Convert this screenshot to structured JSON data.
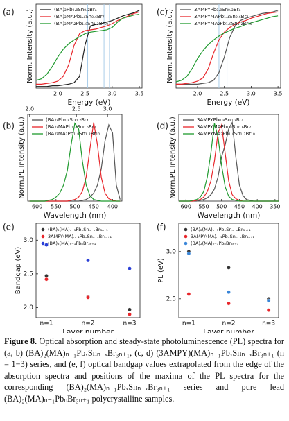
{
  "chart_data": [
    {
      "type": "line",
      "panel_label": "(a)",
      "xlabel": "Energy (eV)",
      "ylabel": "Norm. Intensity (a.u.)",
      "x": [
        1.6,
        1.7,
        1.8,
        1.9,
        2.0,
        2.1,
        2.2,
        2.3,
        2.4,
        2.5,
        2.6,
        2.7,
        2.8,
        2.9,
        3.0,
        3.1,
        3.2,
        3.3,
        3.4,
        3.5
      ],
      "xlim": [
        1.6,
        3.55
      ],
      "xticks": [
        {
          "value": 2,
          "label": "2.0"
        },
        2.5,
        {
          "value": 3,
          "label": "3.0"
        },
        3.5
      ],
      "ylim": [
        0,
        1.08
      ],
      "legend": "upper left",
      "vlines": [
        2.55,
        2.85,
        2.95
      ],
      "vline_color": "#a9cde9",
      "series": [
        {
          "name": "(BA)₂Pb₀.₈Sn₀.₂Br₄",
          "color": "#222222",
          "values": [
            0.02,
            0.02,
            0.02,
            0.03,
            0.03,
            0.04,
            0.05,
            0.07,
            0.15,
            0.55,
            0.8,
            0.82,
            0.83,
            0.85,
            0.87,
            0.9,
            0.93,
            0.95,
            0.97,
            1.0
          ]
        },
        {
          "name": "(BA)₂MAPb₁.₄Sn₀.₆Br₇",
          "color": "#e8262b",
          "values": [
            0.05,
            0.05,
            0.06,
            0.07,
            0.09,
            0.15,
            0.3,
            0.55,
            0.7,
            0.74,
            0.75,
            0.76,
            0.78,
            0.8,
            0.83,
            0.87,
            0.9,
            0.93,
            0.96,
            0.98
          ]
        },
        {
          "name": "(BA)₂MA₂Pb₁.₈Sn₁.₂Br₁₀",
          "color": "#1f9a2e",
          "values": [
            0.1,
            0.12,
            0.18,
            0.28,
            0.4,
            0.5,
            0.57,
            0.62,
            0.66,
            0.7,
            0.72,
            0.73,
            0.74,
            0.75,
            0.78,
            0.85,
            0.9,
            0.92,
            0.94,
            0.95
          ]
        }
      ]
    },
    {
      "type": "line",
      "panel_label": "(c)",
      "xlabel": "Energy (eV)",
      "ylabel": "Norm. Intensity (a.u.)",
      "x": [
        1.6,
        1.7,
        1.8,
        1.9,
        2.0,
        2.1,
        2.2,
        2.3,
        2.4,
        2.5,
        2.6,
        2.7,
        2.8,
        2.9,
        3.0,
        3.1,
        3.2,
        3.3,
        3.4,
        3.5
      ],
      "xlim": [
        1.6,
        3.55
      ],
      "xticks": [
        {
          "value": 2,
          "label": "2.0"
        },
        2.5,
        {
          "value": 3,
          "label": "3.0"
        },
        3.5
      ],
      "ylim": [
        0,
        1.08
      ],
      "legend": "upper left",
      "vlines": [
        2.4,
        2.55
      ],
      "vline_color": "#a9cde9",
      "series": [
        {
          "name": "3AMPYPb₀.₈Sn₀.₂Br₄",
          "color": "#555555",
          "values": [
            0.05,
            0.05,
            0.05,
            0.05,
            0.05,
            0.06,
            0.07,
            0.1,
            0.2,
            0.4,
            0.65,
            0.8,
            0.87,
            0.9,
            0.92,
            0.94,
            0.96,
            0.97,
            0.98,
            1.0
          ]
        },
        {
          "name": "3AMPYMAPb₁.₄Sn₀.₆Br₇",
          "color": "#e8262b",
          "values": [
            0.05,
            0.05,
            0.06,
            0.07,
            0.09,
            0.13,
            0.25,
            0.45,
            0.62,
            0.72,
            0.78,
            0.82,
            0.85,
            0.87,
            0.9,
            0.92,
            0.94,
            0.96,
            0.97,
            0.98
          ]
        },
        {
          "name": "3AMPYMA₂Pb₁.₈Sn₁.₂Br₁₀",
          "color": "#1f9a2e",
          "values": [
            0.08,
            0.1,
            0.15,
            0.25,
            0.38,
            0.48,
            0.56,
            0.62,
            0.67,
            0.71,
            0.74,
            0.77,
            0.79,
            0.82,
            0.84,
            0.86,
            0.88,
            0.9,
            0.92,
            0.93
          ]
        }
      ]
    },
    {
      "type": "line",
      "panel_label": "(b)",
      "xlabel": "Wavelength (nm)",
      "ylabel": "Norm.PL Intensity (a.u.)",
      "x": [
        620,
        610,
        600,
        590,
        580,
        570,
        560,
        550,
        540,
        530,
        520,
        510,
        500,
        490,
        480,
        470,
        460,
        450,
        440,
        430,
        420,
        410,
        400,
        390,
        380
      ],
      "xlim": [
        625,
        375
      ],
      "xticks": [
        600,
        550,
        500,
        450,
        400
      ],
      "ylim": [
        0,
        1.08
      ],
      "x2ticks": [
        {
          "value": 2,
          "label": "2.0"
        },
        2.5,
        {
          "value": 3,
          "label": "3.0"
        }
      ],
      "legend": "upper left",
      "series": [
        {
          "name": "(BA)₂Pb₀.₈Sn₀.₂Br₄",
          "color": "#555555",
          "values": [
            0,
            0,
            0,
            0,
            0,
            0,
            0,
            0,
            0,
            0,
            0,
            0,
            0,
            0,
            0.01,
            0.02,
            0.05,
            0.1,
            0.2,
            0.4,
            0.75,
            0.95,
            0.85,
            0.2,
            0.02
          ]
        },
        {
          "name": "(BA)₂MAPb₁.₄Sn₀.₆Br₇",
          "color": "#e8262b",
          "values": [
            0,
            0,
            0,
            0,
            0,
            0,
            0,
            0,
            0,
            0,
            0,
            0.01,
            0.02,
            0.05,
            0.12,
            0.3,
            0.65,
            0.98,
            0.7,
            0.3,
            0.1,
            0.03,
            0.01,
            0,
            0
          ]
        },
        {
          "name": "(BA)₂MA₂Pb₁.₈Sn₁.₂Br₁₀",
          "color": "#1f9a2e",
          "values": [
            0,
            0,
            0,
            0,
            0,
            0.01,
            0.02,
            0.05,
            0.1,
            0.2,
            0.38,
            0.7,
            0.97,
            0.9,
            0.5,
            0.2,
            0.07,
            0.02,
            0.01,
            0,
            0,
            0,
            0,
            0,
            0
          ]
        }
      ]
    },
    {
      "type": "line",
      "panel_label": "(d)",
      "xlabel": "Wavelength (nm)",
      "ylabel": "Norm.PL Intensity (a.u.)",
      "x": [
        620,
        610,
        600,
        590,
        580,
        570,
        560,
        550,
        540,
        530,
        520,
        510,
        500,
        490,
        480,
        470,
        460,
        450,
        440,
        430,
        420,
        410,
        400,
        390,
        380,
        370,
        360,
        350,
        340
      ],
      "xlim": [
        620,
        340
      ],
      "xticks": [
        600,
        550,
        500,
        450,
        400,
        350
      ],
      "ylim": [
        0,
        1.08
      ],
      "legend": "upper left",
      "series": [
        {
          "name": "3AMPYPb₀.₈Sn₀.₂Br₄",
          "color": "#555555",
          "values": [
            0,
            0,
            0,
            0,
            0,
            0,
            0.01,
            0.02,
            0.04,
            0.08,
            0.15,
            0.3,
            0.55,
            0.7,
            0.9,
            0.98,
            0.55,
            0.2,
            0.07,
            0.02,
            0.01,
            0,
            0,
            0,
            0,
            0,
            0,
            0,
            0
          ]
        },
        {
          "name": "3AMPYMAPb₁.₄Sn₀.₆Br₇",
          "color": "#e8262b",
          "values": [
            0,
            0,
            0,
            0,
            0,
            0.01,
            0.02,
            0.05,
            0.12,
            0.25,
            0.5,
            0.85,
            0.95,
            0.6,
            0.25,
            0.08,
            0.03,
            0.01,
            0,
            0,
            0,
            0,
            0,
            0,
            0,
            0,
            0,
            0,
            0
          ]
        },
        {
          "name": "3AMPYMA₂Pb₁.₈Sn₁.₂Br₁₀",
          "color": "#1f9a2e",
          "values": [
            0,
            0,
            0,
            0,
            0.01,
            0.02,
            0.05,
            0.12,
            0.3,
            0.6,
            0.97,
            0.8,
            0.45,
            0.18,
            0.06,
            0.02,
            0.01,
            0,
            0,
            0,
            0,
            0,
            0,
            0,
            0,
            0,
            0,
            0,
            0
          ]
        }
      ]
    },
    {
      "type": "scatter",
      "panel_label": "(e)",
      "xlabel": "Layer number",
      "ylabel": "Bandgap (eV)",
      "categories": [
        "n=1",
        "n=2",
        "n=3"
      ],
      "ylim": [
        1.85,
        3.25
      ],
      "yticks": [
        {
          "value": 2,
          "label": "2.0"
        },
        2.5,
        {
          "value": 3,
          "label": "3.0"
        }
      ],
      "legend": "upper left",
      "series": [
        {
          "name": "(BA)₂(MA)ₙ₋₁PbₓSnₙ₋ₓBr₃ₙ₊₁",
          "color": "#333333",
          "values": [
            2.47,
            2.16,
            1.97
          ]
        },
        {
          "name": "3AMPY(MA)ₙ₋₁PbₓSnₙ₋ₓBr₃ₙ₊₁",
          "color": "#e8262b",
          "values": [
            2.42,
            2.15,
            1.9
          ]
        },
        {
          "name": "(BA)₂(MA)ₙ₋₁PbₙBr₃ₙ₊₁",
          "color": "#2a3fd6",
          "values": [
            2.93,
            2.7,
            2.58
          ]
        }
      ]
    },
    {
      "type": "scatter",
      "panel_label": "(f)",
      "xlabel": "Layer number",
      "ylabel": "PL (eV)",
      "categories": [
        "n=1",
        "n=2",
        "n=3"
      ],
      "ylim": [
        2.3,
        3.3
      ],
      "yticks": [
        2.5,
        {
          "value": 3,
          "label": "3.0"
        }
      ],
      "legend": "upper left",
      "series": [
        {
          "name": "(BA)₂(MA)ₙ₋₁PbₓSnₙ₋ₓBr₃ₙ₊₁",
          "color": "#333333",
          "values": [
            3.0,
            2.83,
            2.5
          ]
        },
        {
          "name": "3AMPY(MA)ₙ₋₁PbₓSnₙ₋ₓBr₃ₙ₊₁",
          "color": "#e8262b",
          "values": [
            2.55,
            2.45,
            2.38
          ]
        },
        {
          "name": "(BA)₂(MA)ₙ₋₁PbₙBr₃ₙ₊₁",
          "color": "#3a86d8",
          "values": [
            2.98,
            2.57,
            2.48
          ]
        }
      ]
    }
  ],
  "caption": {
    "label": "Figure 8.",
    "text": "Optical absorption and steady-state photoluminescence (PL) spectra for (a, b) (BA)₂(MA)ₙ₋₁PbₓSnₙ₋ₓBr₃ₙ₊₁, (c, d) (3AMPY)(MA)ₙ₋₁PbₓSnₙ₋ₓBr₃ₙ₊₁ (n = 1−3) series, and (e, f) optical bandgap values extrapolated from the edge of the absorption spectra and positions of the maxima of the PL spectra for the corresponding (BA)₂(MA)ₙ₋₁PbₓSnₙ₋ₓBr₃ₙ₊₁ series and pure lead (BA)₂(MA)ₙ₋₁PbₙBr₃ₙ₊₁ polycrystalline samples."
  }
}
